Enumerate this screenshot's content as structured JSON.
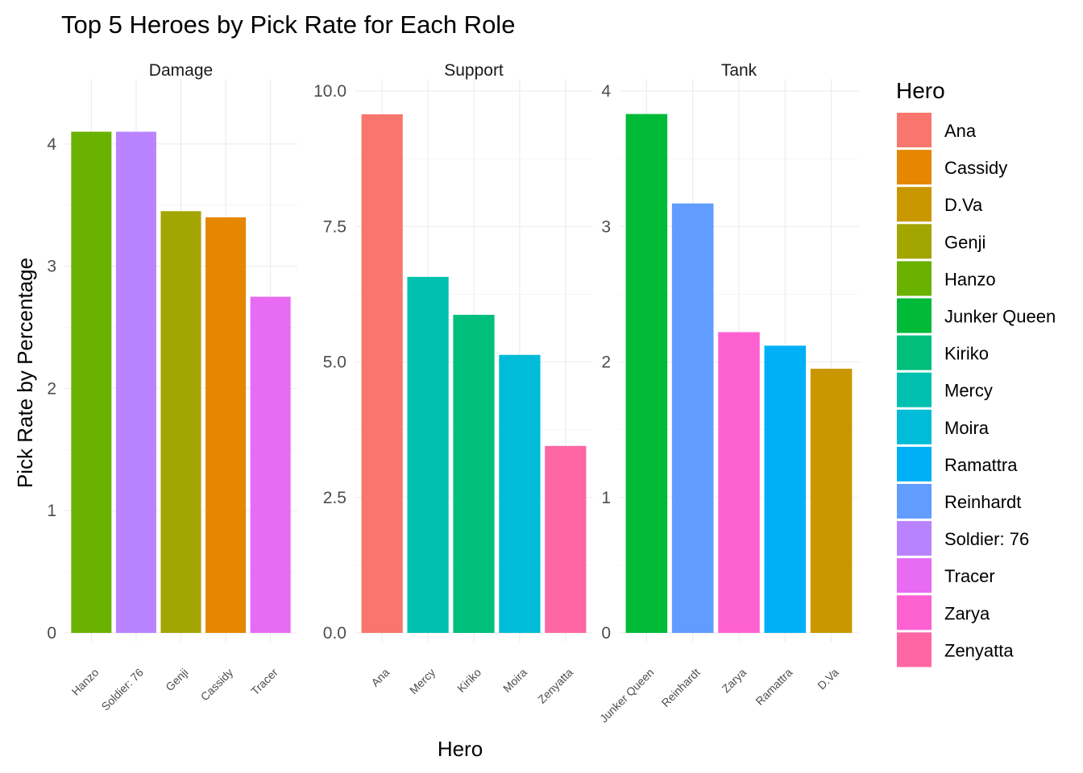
{
  "chart_data": {
    "type": "bar",
    "title": "Top 5 Heroes by Pick Rate for Each Role",
    "xlabel": "Hero",
    "ylabel": "Pick Rate by Percentage",
    "grid": true,
    "legend": {
      "title": "Hero",
      "position": "right",
      "entries": [
        {
          "label": "Ana",
          "color": "#F8766D"
        },
        {
          "label": "Cassidy",
          "color": "#E58700"
        },
        {
          "label": "D.Va",
          "color": "#C99800"
        },
        {
          "label": "Genji",
          "color": "#A3A500"
        },
        {
          "label": "Hanzo",
          "color": "#6BB100"
        },
        {
          "label": "Junker Queen",
          "color": "#00BA38"
        },
        {
          "label": "Kiriko",
          "color": "#00BF7D"
        },
        {
          "label": "Mercy",
          "color": "#00C0AF"
        },
        {
          "label": "Moira",
          "color": "#00BCD8"
        },
        {
          "label": "Ramattra",
          "color": "#00B0F6"
        },
        {
          "label": "Reinhardt",
          "color": "#619CFF"
        },
        {
          "label": "Soldier: 76",
          "color": "#B983FF"
        },
        {
          "label": "Tracer",
          "color": "#E76BF3"
        },
        {
          "label": "Zarya",
          "color": "#FD61D1"
        },
        {
          "label": "Zenyatta",
          "color": "#FF67A4"
        }
      ]
    },
    "facets": [
      {
        "role": "Damage",
        "ylim": [
          0,
          4.15
        ],
        "yticks": [
          0,
          1,
          2,
          3,
          4
        ],
        "ytick_labels": [
          "0",
          "1",
          "2",
          "3",
          "4"
        ],
        "categories": [
          "Hanzo",
          "Soldier: 76",
          "Genji",
          "Cassidy",
          "Tracer"
        ],
        "values": [
          4.1,
          4.1,
          3.45,
          3.4,
          2.75
        ]
      },
      {
        "role": "Support",
        "ylim": [
          0,
          10.0
        ],
        "yticks": [
          0,
          2.5,
          5,
          7.5,
          10
        ],
        "ytick_labels": [
          "0.0",
          "2.5",
          "5.0",
          "7.5",
          "10.0"
        ],
        "categories": [
          "Ana",
          "Mercy",
          "Kiriko",
          "Moira",
          "Zenyatta"
        ],
        "values": [
          9.57,
          6.57,
          5.87,
          5.13,
          3.45
        ]
      },
      {
        "role": "Tank",
        "ylim": [
          0,
          4.0
        ],
        "yticks": [
          0,
          1,
          2,
          3,
          4
        ],
        "ytick_labels": [
          "0",
          "1",
          "2",
          "3",
          "4"
        ],
        "categories": [
          "Junker Queen",
          "Reinhardt",
          "Zarya",
          "Ramattra",
          "D.Va"
        ],
        "values": [
          3.83,
          3.17,
          2.22,
          2.12,
          1.95
        ]
      }
    ]
  }
}
